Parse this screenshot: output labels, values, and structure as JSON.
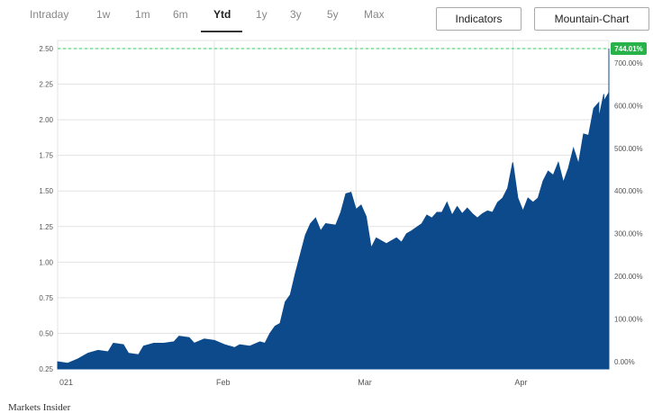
{
  "toolbar": {
    "tabs": [
      {
        "label": "Intraday"
      },
      {
        "label": "1w"
      },
      {
        "label": "1m"
      },
      {
        "label": "6m"
      },
      {
        "label": "Ytd",
        "active": true
      },
      {
        "label": "1y"
      },
      {
        "label": "3y"
      },
      {
        "label": "5y"
      },
      {
        "label": "Max"
      }
    ],
    "indicators_label": "Indicators",
    "chart_type_label": "Mountain-Chart"
  },
  "source_caption": "Markets Insider",
  "colors": {
    "fill": "#0d4a8c",
    "badge": "#27b34a",
    "grid": "#e3e3e3",
    "ref_line": "#3cc36b"
  },
  "chart_data": {
    "type": "area",
    "left_axis": {
      "ticks": [
        "0.25",
        "0.50",
        "0.75",
        "1.00",
        "1.25",
        "1.50",
        "1.75",
        "2.00",
        "2.25",
        "2.50"
      ],
      "ylim": [
        0.25,
        2.5
      ]
    },
    "right_axis": {
      "ticks": [
        "0.00%",
        "100.00%",
        "200.00%",
        "300.00%",
        "400.00%",
        "500.00%",
        "600.00%",
        "700.00%"
      ]
    },
    "x_ticks": [
      {
        "label": "021",
        "date": "2021-01-01"
      },
      {
        "label": "Feb",
        "date": "2021-02-01"
      },
      {
        "label": "Mar",
        "date": "2021-03-01"
      },
      {
        "label": "Apr",
        "date": "2021-04-01"
      }
    ],
    "xlim": [
      "2021-01-01",
      "2021-04-20"
    ],
    "last_value_badge": "744.01%",
    "last_value": 2.5,
    "series": [
      {
        "date": "2021-01-01",
        "value": 0.3
      },
      {
        "date": "2021-01-03",
        "value": 0.29
      },
      {
        "date": "2021-01-05",
        "value": 0.32
      },
      {
        "date": "2021-01-07",
        "value": 0.36
      },
      {
        "date": "2021-01-09",
        "value": 0.38
      },
      {
        "date": "2021-01-11",
        "value": 0.37
      },
      {
        "date": "2021-01-12",
        "value": 0.43
      },
      {
        "date": "2021-01-14",
        "value": 0.42
      },
      {
        "date": "2021-01-15",
        "value": 0.36
      },
      {
        "date": "2021-01-17",
        "value": 0.35
      },
      {
        "date": "2021-01-18",
        "value": 0.41
      },
      {
        "date": "2021-01-20",
        "value": 0.43
      },
      {
        "date": "2021-01-22",
        "value": 0.43
      },
      {
        "date": "2021-01-24",
        "value": 0.44
      },
      {
        "date": "2021-01-25",
        "value": 0.48
      },
      {
        "date": "2021-01-27",
        "value": 0.47
      },
      {
        "date": "2021-01-28",
        "value": 0.43
      },
      {
        "date": "2021-01-30",
        "value": 0.46
      },
      {
        "date": "2021-02-01",
        "value": 0.45
      },
      {
        "date": "2021-02-03",
        "value": 0.42
      },
      {
        "date": "2021-02-05",
        "value": 0.4
      },
      {
        "date": "2021-02-06",
        "value": 0.42
      },
      {
        "date": "2021-02-08",
        "value": 0.41
      },
      {
        "date": "2021-02-10",
        "value": 0.44
      },
      {
        "date": "2021-02-11",
        "value": 0.43
      },
      {
        "date": "2021-02-12",
        "value": 0.5
      },
      {
        "date": "2021-02-13",
        "value": 0.55
      },
      {
        "date": "2021-02-14",
        "value": 0.57
      },
      {
        "date": "2021-02-15",
        "value": 0.72
      },
      {
        "date": "2021-02-16",
        "value": 0.77
      },
      {
        "date": "2021-02-17",
        "value": 0.92
      },
      {
        "date": "2021-02-19",
        "value": 1.19
      },
      {
        "date": "2021-02-20",
        "value": 1.27
      },
      {
        "date": "2021-02-21",
        "value": 1.31
      },
      {
        "date": "2021-02-22",
        "value": 1.22
      },
      {
        "date": "2021-02-23",
        "value": 1.27
      },
      {
        "date": "2021-02-25",
        "value": 1.26
      },
      {
        "date": "2021-02-26",
        "value": 1.35
      },
      {
        "date": "2021-02-27",
        "value": 1.48
      },
      {
        "date": "2021-02-28",
        "value": 1.49
      },
      {
        "date": "2021-03-01",
        "value": 1.37
      },
      {
        "date": "2021-03-02",
        "value": 1.4
      },
      {
        "date": "2021-03-03",
        "value": 1.32
      },
      {
        "date": "2021-03-04",
        "value": 1.1
      },
      {
        "date": "2021-03-05",
        "value": 1.17
      },
      {
        "date": "2021-03-07",
        "value": 1.13
      },
      {
        "date": "2021-03-08",
        "value": 1.15
      },
      {
        "date": "2021-03-09",
        "value": 1.17
      },
      {
        "date": "2021-03-10",
        "value": 1.14
      },
      {
        "date": "2021-03-11",
        "value": 1.2
      },
      {
        "date": "2021-03-12",
        "value": 1.22
      },
      {
        "date": "2021-03-14",
        "value": 1.27
      },
      {
        "date": "2021-03-15",
        "value": 1.33
      },
      {
        "date": "2021-03-16",
        "value": 1.31
      },
      {
        "date": "2021-03-17",
        "value": 1.35
      },
      {
        "date": "2021-03-18",
        "value": 1.35
      },
      {
        "date": "2021-03-19",
        "value": 1.42
      },
      {
        "date": "2021-03-20",
        "value": 1.33
      },
      {
        "date": "2021-03-21",
        "value": 1.39
      },
      {
        "date": "2021-03-22",
        "value": 1.34
      },
      {
        "date": "2021-03-23",
        "value": 1.38
      },
      {
        "date": "2021-03-24",
        "value": 1.34
      },
      {
        "date": "2021-03-25",
        "value": 1.31
      },
      {
        "date": "2021-03-26",
        "value": 1.34
      },
      {
        "date": "2021-03-27",
        "value": 1.36
      },
      {
        "date": "2021-03-28",
        "value": 1.35
      },
      {
        "date": "2021-03-29",
        "value": 1.42
      },
      {
        "date": "2021-03-30",
        "value": 1.45
      },
      {
        "date": "2021-03-31",
        "value": 1.52
      },
      {
        "date": "2021-04-01",
        "value": 1.7
      },
      {
        "date": "2021-04-02",
        "value": 1.45
      },
      {
        "date": "2021-04-03",
        "value": 1.36
      },
      {
        "date": "2021-04-04",
        "value": 1.45
      },
      {
        "date": "2021-04-05",
        "value": 1.42
      },
      {
        "date": "2021-04-06",
        "value": 1.45
      },
      {
        "date": "2021-04-07",
        "value": 1.57
      },
      {
        "date": "2021-04-08",
        "value": 1.64
      },
      {
        "date": "2021-04-09",
        "value": 1.61
      },
      {
        "date": "2021-04-10",
        "value": 1.7
      },
      {
        "date": "2021-04-11",
        "value": 1.56
      },
      {
        "date": "2021-04-12",
        "value": 1.66
      },
      {
        "date": "2021-04-13",
        "value": 1.8
      },
      {
        "date": "2021-04-14",
        "value": 1.69
      },
      {
        "date": "2021-04-15",
        "value": 1.9
      },
      {
        "date": "2021-04-16",
        "value": 1.89
      },
      {
        "date": "2021-04-17",
        "value": 2.08
      },
      {
        "date": "2021-04-18",
        "value": 2.12
      },
      {
        "date": "2021-04-18",
        "value": 2.01
      },
      {
        "date": "2021-04-19",
        "value": 2.18
      },
      {
        "date": "2021-04-19",
        "value": 2.13
      },
      {
        "date": "2021-04-20",
        "value": 2.19
      },
      {
        "date": "2021-04-20",
        "value": 2.5
      }
    ]
  }
}
